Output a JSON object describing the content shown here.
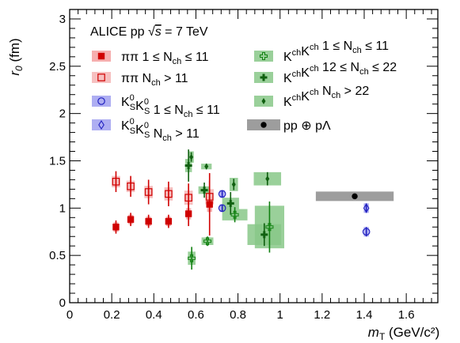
{
  "chart_data": {
    "type": "scatter",
    "title": "ALICE pp √s = 7 TeV",
    "xlabel": "m_T (GeV/c²)",
    "ylabel": "r_0 (fm)",
    "xlim": [
      0,
      1.75
    ],
    "ylim": [
      0,
      3.1
    ],
    "x_ticks": [
      "0",
      "0.2",
      "0.4",
      "0.6",
      "0.8",
      "1",
      "1.2",
      "1.4",
      "1.6"
    ],
    "y_ticks": [
      "0",
      "0.5",
      "1",
      "1.5",
      "2",
      "2.5",
      "3"
    ],
    "header": {
      "prefix": "ALICE pp ",
      "sqrt": "√",
      "s": "s",
      "rest": " = 7 TeV"
    },
    "legend_left": [
      {
        "series": 0,
        "particle_parts": [
          "ππ"
        ],
        "cond": "1 ≤ N",
        "sub": "ch",
        "tail": " ≤ 11"
      },
      {
        "series": 1,
        "particle_parts": [
          "ππ"
        ],
        "cond": "N",
        "sub": "ch",
        "tail": " > 11"
      },
      {
        "series": 2,
        "particle": "K0K0",
        "cond": "1 ≤ N",
        "sub": "ch",
        "tail": " ≤ 11"
      },
      {
        "series": 3,
        "particle": "K0K0",
        "cond": "N",
        "sub": "ch",
        "tail": " > 11"
      }
    ],
    "legend_right": [
      {
        "series": 4,
        "particle": "KchKch",
        "cond": "1 ≤ N",
        "sub": "ch",
        "tail": " ≤ 11"
      },
      {
        "series": 5,
        "particle": "KchKch",
        "cond": "12 ≤ N",
        "sub": "ch",
        "tail": " ≤ 22"
      },
      {
        "series": 6,
        "particle": "KchKch",
        "cond": "N",
        "sub": "ch",
        "tail": " > 22"
      },
      {
        "series": 7,
        "particle": "pp",
        "text": "pp ⊕ pΛ"
      }
    ],
    "legend_labels": {
      "K0K0": {
        "k": "K",
        "sup": "0",
        "subS": "S"
      },
      "KchKch": {
        "k": "K",
        "sup": "ch"
      },
      "ch": "ch"
    },
    "series": [
      {
        "marker": "square-filled",
        "color": "#d00000",
        "box_color": "#f5a0a0",
        "points": [
          {
            "x": 0.22,
            "y": 0.8,
            "err": 0.07,
            "bw": 0.012,
            "bh": 0.1
          },
          {
            "x": 0.29,
            "y": 0.88,
            "err": 0.07,
            "bw": 0.012,
            "bh": 0.1
          },
          {
            "x": 0.375,
            "y": 0.86,
            "err": 0.07,
            "bw": 0.012,
            "bh": 0.1
          },
          {
            "x": 0.47,
            "y": 0.86,
            "err": 0.07,
            "bw": 0.012,
            "bh": 0.1
          },
          {
            "x": 0.565,
            "y": 0.94,
            "err": 0.13,
            "bw": 0.012,
            "bh": 0.12
          },
          {
            "x": 0.665,
            "y": 1.04,
            "err": 0.33,
            "bw": 0.012,
            "bh": 0.16
          }
        ]
      },
      {
        "marker": "square-open",
        "color": "#d00000",
        "box_color": "#f5b5b5",
        "points": [
          {
            "x": 0.22,
            "y": 1.28,
            "err": 0.11,
            "bw": 0.02,
            "bh": 0.12
          },
          {
            "x": 0.29,
            "y": 1.23,
            "err": 0.11,
            "bw": 0.02,
            "bh": 0.12
          },
          {
            "x": 0.375,
            "y": 1.17,
            "err": 0.13,
            "bw": 0.02,
            "bh": 0.13
          },
          {
            "x": 0.47,
            "y": 1.15,
            "err": 0.13,
            "bw": 0.02,
            "bh": 0.14
          },
          {
            "x": 0.565,
            "y": 1.11,
            "err": 0.15,
            "bw": 0.02,
            "bh": 0.15
          },
          {
            "x": 0.665,
            "y": 1.12,
            "err": 0.17,
            "bw": 0.02,
            "bh": 0.16
          }
        ]
      },
      {
        "marker": "circle-open",
        "color": "#2020c0",
        "box_color": "#a0a0f0",
        "points": [
          {
            "x": 0.725,
            "y": 1.15,
            "err": 0.04,
            "bw": 0.012,
            "bh": 0.08
          },
          {
            "x": 0.725,
            "y": 1.0,
            "err": 0.04,
            "bw": 0.012,
            "bh": 0.08
          },
          {
            "x": 1.41,
            "y": 0.75,
            "err": 0.05,
            "bw": 0.012,
            "bh": 0.1
          }
        ]
      },
      {
        "marker": "diamond-open",
        "color": "#2020c0",
        "box_color": "#a0a0f0",
        "points": [
          {
            "x": 1.41,
            "y": 1.0,
            "err": 0.05,
            "bw": 0.012,
            "bh": 0.1
          }
        ]
      },
      {
        "marker": "cross-open",
        "color": "#108010",
        "box_color": "#88c888",
        "points": [
          {
            "x": 0.58,
            "y": 0.47,
            "err": 0.12,
            "bw": 0.018,
            "bh": 0.14
          },
          {
            "x": 0.655,
            "y": 0.65,
            "err": 0.05,
            "bw": 0.028,
            "bh": 0.08
          },
          {
            "x": 0.785,
            "y": 0.93,
            "err": 0.08,
            "bw": 0.06,
            "bh": 0.12
          },
          {
            "x": 0.95,
            "y": 0.8,
            "err": 0.27,
            "bw": 0.07,
            "bh": 0.45
          }
        ]
      },
      {
        "marker": "cross-filled",
        "color": "#106010",
        "box_color": "#88c888",
        "points": [
          {
            "x": 0.565,
            "y": 1.45,
            "err": 0.17,
            "bw": 0.016,
            "bh": 0.14
          },
          {
            "x": 0.64,
            "y": 1.19,
            "err": 0.08,
            "bw": 0.028,
            "bh": 0.08
          },
          {
            "x": 0.765,
            "y": 1.05,
            "err": 0.12,
            "bw": 0.04,
            "bh": 0.12
          },
          {
            "x": 0.925,
            "y": 0.72,
            "err": 0.12,
            "bw": 0.08,
            "bh": 0.22
          }
        ]
      },
      {
        "marker": "diamond-filled",
        "color": "#106010",
        "box_color": "#88c888",
        "points": [
          {
            "x": 0.578,
            "y": 1.54,
            "err": 0.05,
            "bw": 0.012,
            "bh": 0.12
          },
          {
            "x": 0.65,
            "y": 1.44,
            "err": 0.03,
            "bw": 0.025,
            "bh": 0.06
          },
          {
            "x": 0.78,
            "y": 1.25,
            "err": 0.06,
            "bw": 0.02,
            "bh": 0.14
          },
          {
            "x": 0.94,
            "y": 1.31,
            "err": 0.07,
            "bw": 0.065,
            "bh": 0.14
          }
        ]
      },
      {
        "marker": "circle-filled",
        "color": "#000000",
        "box_color": "#8c8c8c",
        "points": [
          {
            "x": 1.355,
            "y": 1.125,
            "err": 0.01,
            "bw": 0.185,
            "bh": 0.1
          }
        ]
      }
    ]
  }
}
